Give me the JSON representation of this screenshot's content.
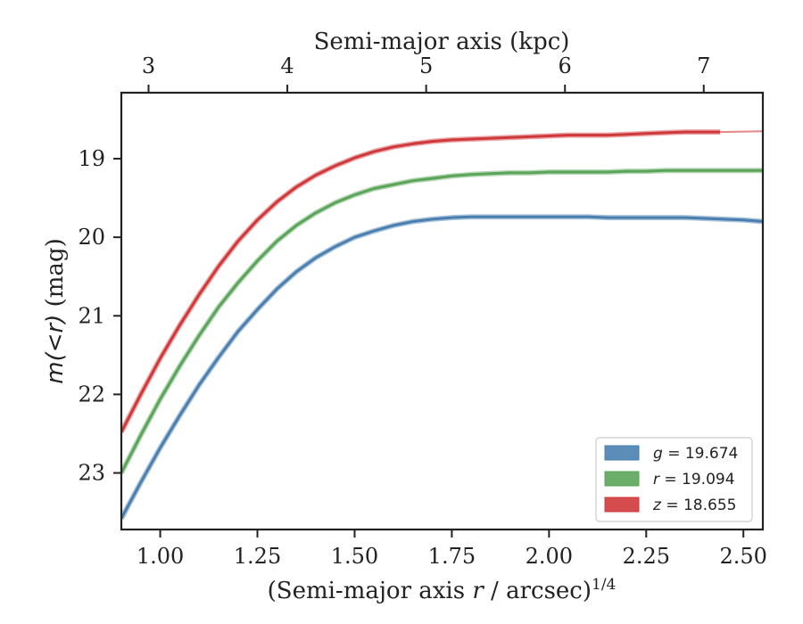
{
  "chart_data": {
    "type": "line",
    "xlabel_prefix": "(Semi-major axis ",
    "xlabel_var": "r",
    "xlabel_suffix": " / arcsec)",
    "xlabel_power": "1/4",
    "ylabel_prefix": "m(<r)",
    "ylabel_suffix": " (mag)",
    "top_xlabel": "Semi-major axis (kpc)",
    "xlim": [
      0.9,
      2.55
    ],
    "ylim": [
      23.72,
      18.16
    ],
    "y_inverted": true,
    "x_ticks": [
      "1.00",
      "1.25",
      "1.50",
      "1.75",
      "2.00",
      "2.25",
      "2.50"
    ],
    "y_ticks": [
      "19",
      "20",
      "21",
      "22",
      "23"
    ],
    "top_ticks": [
      "3",
      "4",
      "5",
      "6",
      "7"
    ],
    "top_tick_positions_x": [
      0.97,
      1.327,
      1.684,
      2.041,
      2.398
    ],
    "legend_position": "lower right",
    "series": [
      {
        "name": "g = 19.674",
        "band": "g",
        "value": "19.674",
        "color": "#4a7fb0",
        "x": [
          0.9,
          0.95,
          1.0,
          1.05,
          1.1,
          1.15,
          1.2,
          1.25,
          1.3,
          1.35,
          1.4,
          1.45,
          1.5,
          1.55,
          1.6,
          1.65,
          1.7,
          1.75,
          1.8,
          1.85,
          1.9,
          1.95,
          2.0,
          2.05,
          2.1,
          2.15,
          2.2,
          2.25,
          2.3,
          2.35,
          2.4,
          2.45,
          2.5,
          2.55
        ],
        "values": [
          23.58,
          23.12,
          22.68,
          22.27,
          21.88,
          21.53,
          21.2,
          20.92,
          20.66,
          20.44,
          20.26,
          20.12,
          20.0,
          19.92,
          19.85,
          19.8,
          19.77,
          19.75,
          19.74,
          19.74,
          19.74,
          19.74,
          19.74,
          19.74,
          19.74,
          19.75,
          19.75,
          19.75,
          19.75,
          19.75,
          19.76,
          19.77,
          19.78,
          19.8
        ]
      },
      {
        "name": "r = 19.094",
        "band": "r",
        "value": "19.094",
        "color": "#5aa55a",
        "x": [
          0.9,
          0.95,
          1.0,
          1.05,
          1.1,
          1.15,
          1.2,
          1.25,
          1.3,
          1.35,
          1.4,
          1.45,
          1.5,
          1.55,
          1.6,
          1.65,
          1.7,
          1.75,
          1.8,
          1.85,
          1.9,
          1.95,
          2.0,
          2.05,
          2.1,
          2.15,
          2.2,
          2.25,
          2.3,
          2.35,
          2.4,
          2.45,
          2.5,
          2.55
        ],
        "values": [
          23.0,
          22.52,
          22.06,
          21.64,
          21.25,
          20.89,
          20.58,
          20.3,
          20.05,
          19.85,
          19.69,
          19.56,
          19.46,
          19.38,
          19.33,
          19.28,
          19.25,
          19.22,
          19.2,
          19.19,
          19.18,
          19.18,
          19.17,
          19.17,
          19.17,
          19.17,
          19.16,
          19.16,
          19.15,
          19.15,
          19.15,
          19.15,
          19.15,
          19.15
        ]
      },
      {
        "name": "z = 18.655",
        "band": "z",
        "value": "18.655",
        "color": "#d0393b",
        "x": [
          0.9,
          0.95,
          1.0,
          1.05,
          1.1,
          1.15,
          1.2,
          1.25,
          1.3,
          1.35,
          1.4,
          1.45,
          1.5,
          1.55,
          1.6,
          1.65,
          1.7,
          1.75,
          1.8,
          1.85,
          1.9,
          1.95,
          2.0,
          2.05,
          2.1,
          2.15,
          2.2,
          2.25,
          2.3,
          2.35,
          2.4,
          2.44
        ],
        "values": [
          22.48,
          22.0,
          21.54,
          21.12,
          20.73,
          20.37,
          20.05,
          19.78,
          19.55,
          19.36,
          19.21,
          19.09,
          18.99,
          18.91,
          18.85,
          18.81,
          18.78,
          18.76,
          18.75,
          18.74,
          18.73,
          18.72,
          18.71,
          18.7,
          18.7,
          18.7,
          18.69,
          18.68,
          18.67,
          18.66,
          18.66,
          18.66
        ],
        "extension_x": [
          2.44,
          2.55
        ],
        "extension_values": [
          18.66,
          18.65
        ]
      }
    ]
  }
}
